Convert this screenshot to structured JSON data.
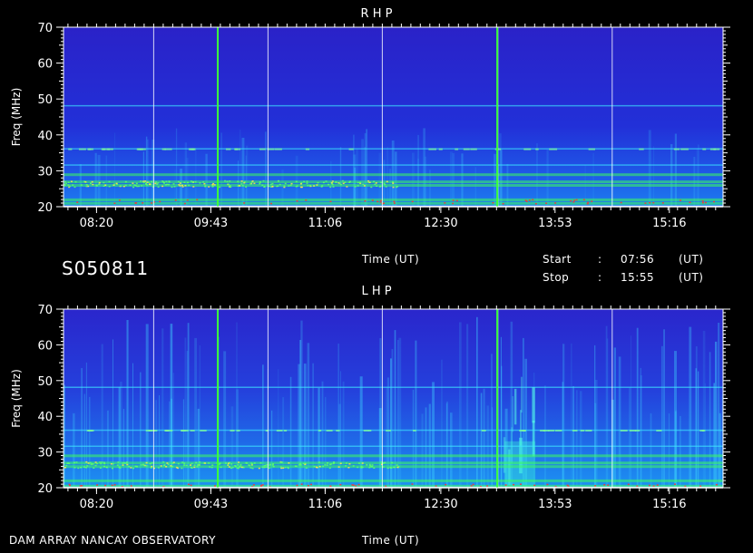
{
  "header": {
    "session_code": "S050811",
    "time_label": "Time (UT)",
    "start_label": "Start",
    "start_value": "07:56",
    "stop_label": "Stop",
    "stop_value": "15:55",
    "sep": ":",
    "ut_tag": "(UT)"
  },
  "footer": {
    "observatory": "DAM ARRAY  NANCAY OBSERVATORY",
    "time_label": "Time (UT)"
  },
  "chart_data": [
    {
      "type": "heatmap",
      "title": "R H P",
      "xlabel": "Time (UT)",
      "ylabel": "Freq (MHz)",
      "xlim": [
        "07:56",
        "15:55"
      ],
      "ylim": [
        20,
        70
      ],
      "x_ticks": [
        "08:20",
        "09:43",
        "11:06",
        "12:30",
        "13:53",
        "15:16"
      ],
      "y_ticks": [
        20,
        30,
        40,
        50,
        60,
        70
      ],
      "grid": true,
      "colors": {
        "background": "#2222d0",
        "high": "#33e8ff",
        "emission": "#3cff5a",
        "peak": "#ff2a2a"
      },
      "emission_bands_mhz": [
        21,
        22,
        26,
        27,
        29,
        31.5,
        36,
        48
      ],
      "green_markers": [
        "09:48",
        "13:11"
      ]
    },
    {
      "type": "heatmap",
      "title": "L H P",
      "xlabel": "Time (UT)",
      "ylabel": "Freq (MHz)",
      "xlim": [
        "07:56",
        "15:55"
      ],
      "ylim": [
        20,
        70
      ],
      "x_ticks": [
        "08:20",
        "09:43",
        "11:06",
        "12:30",
        "13:53",
        "15:16"
      ],
      "y_ticks": [
        20,
        30,
        40,
        50,
        60,
        70
      ],
      "grid": true,
      "colors": {
        "background": "#2222d0",
        "high": "#33e8ff",
        "emission": "#3cff5a",
        "peak": "#ff2a2a"
      },
      "emission_bands_mhz": [
        20.5,
        22,
        26,
        27,
        29,
        31.5,
        36,
        48
      ],
      "green_markers": [
        "09:48",
        "13:11"
      ]
    }
  ]
}
